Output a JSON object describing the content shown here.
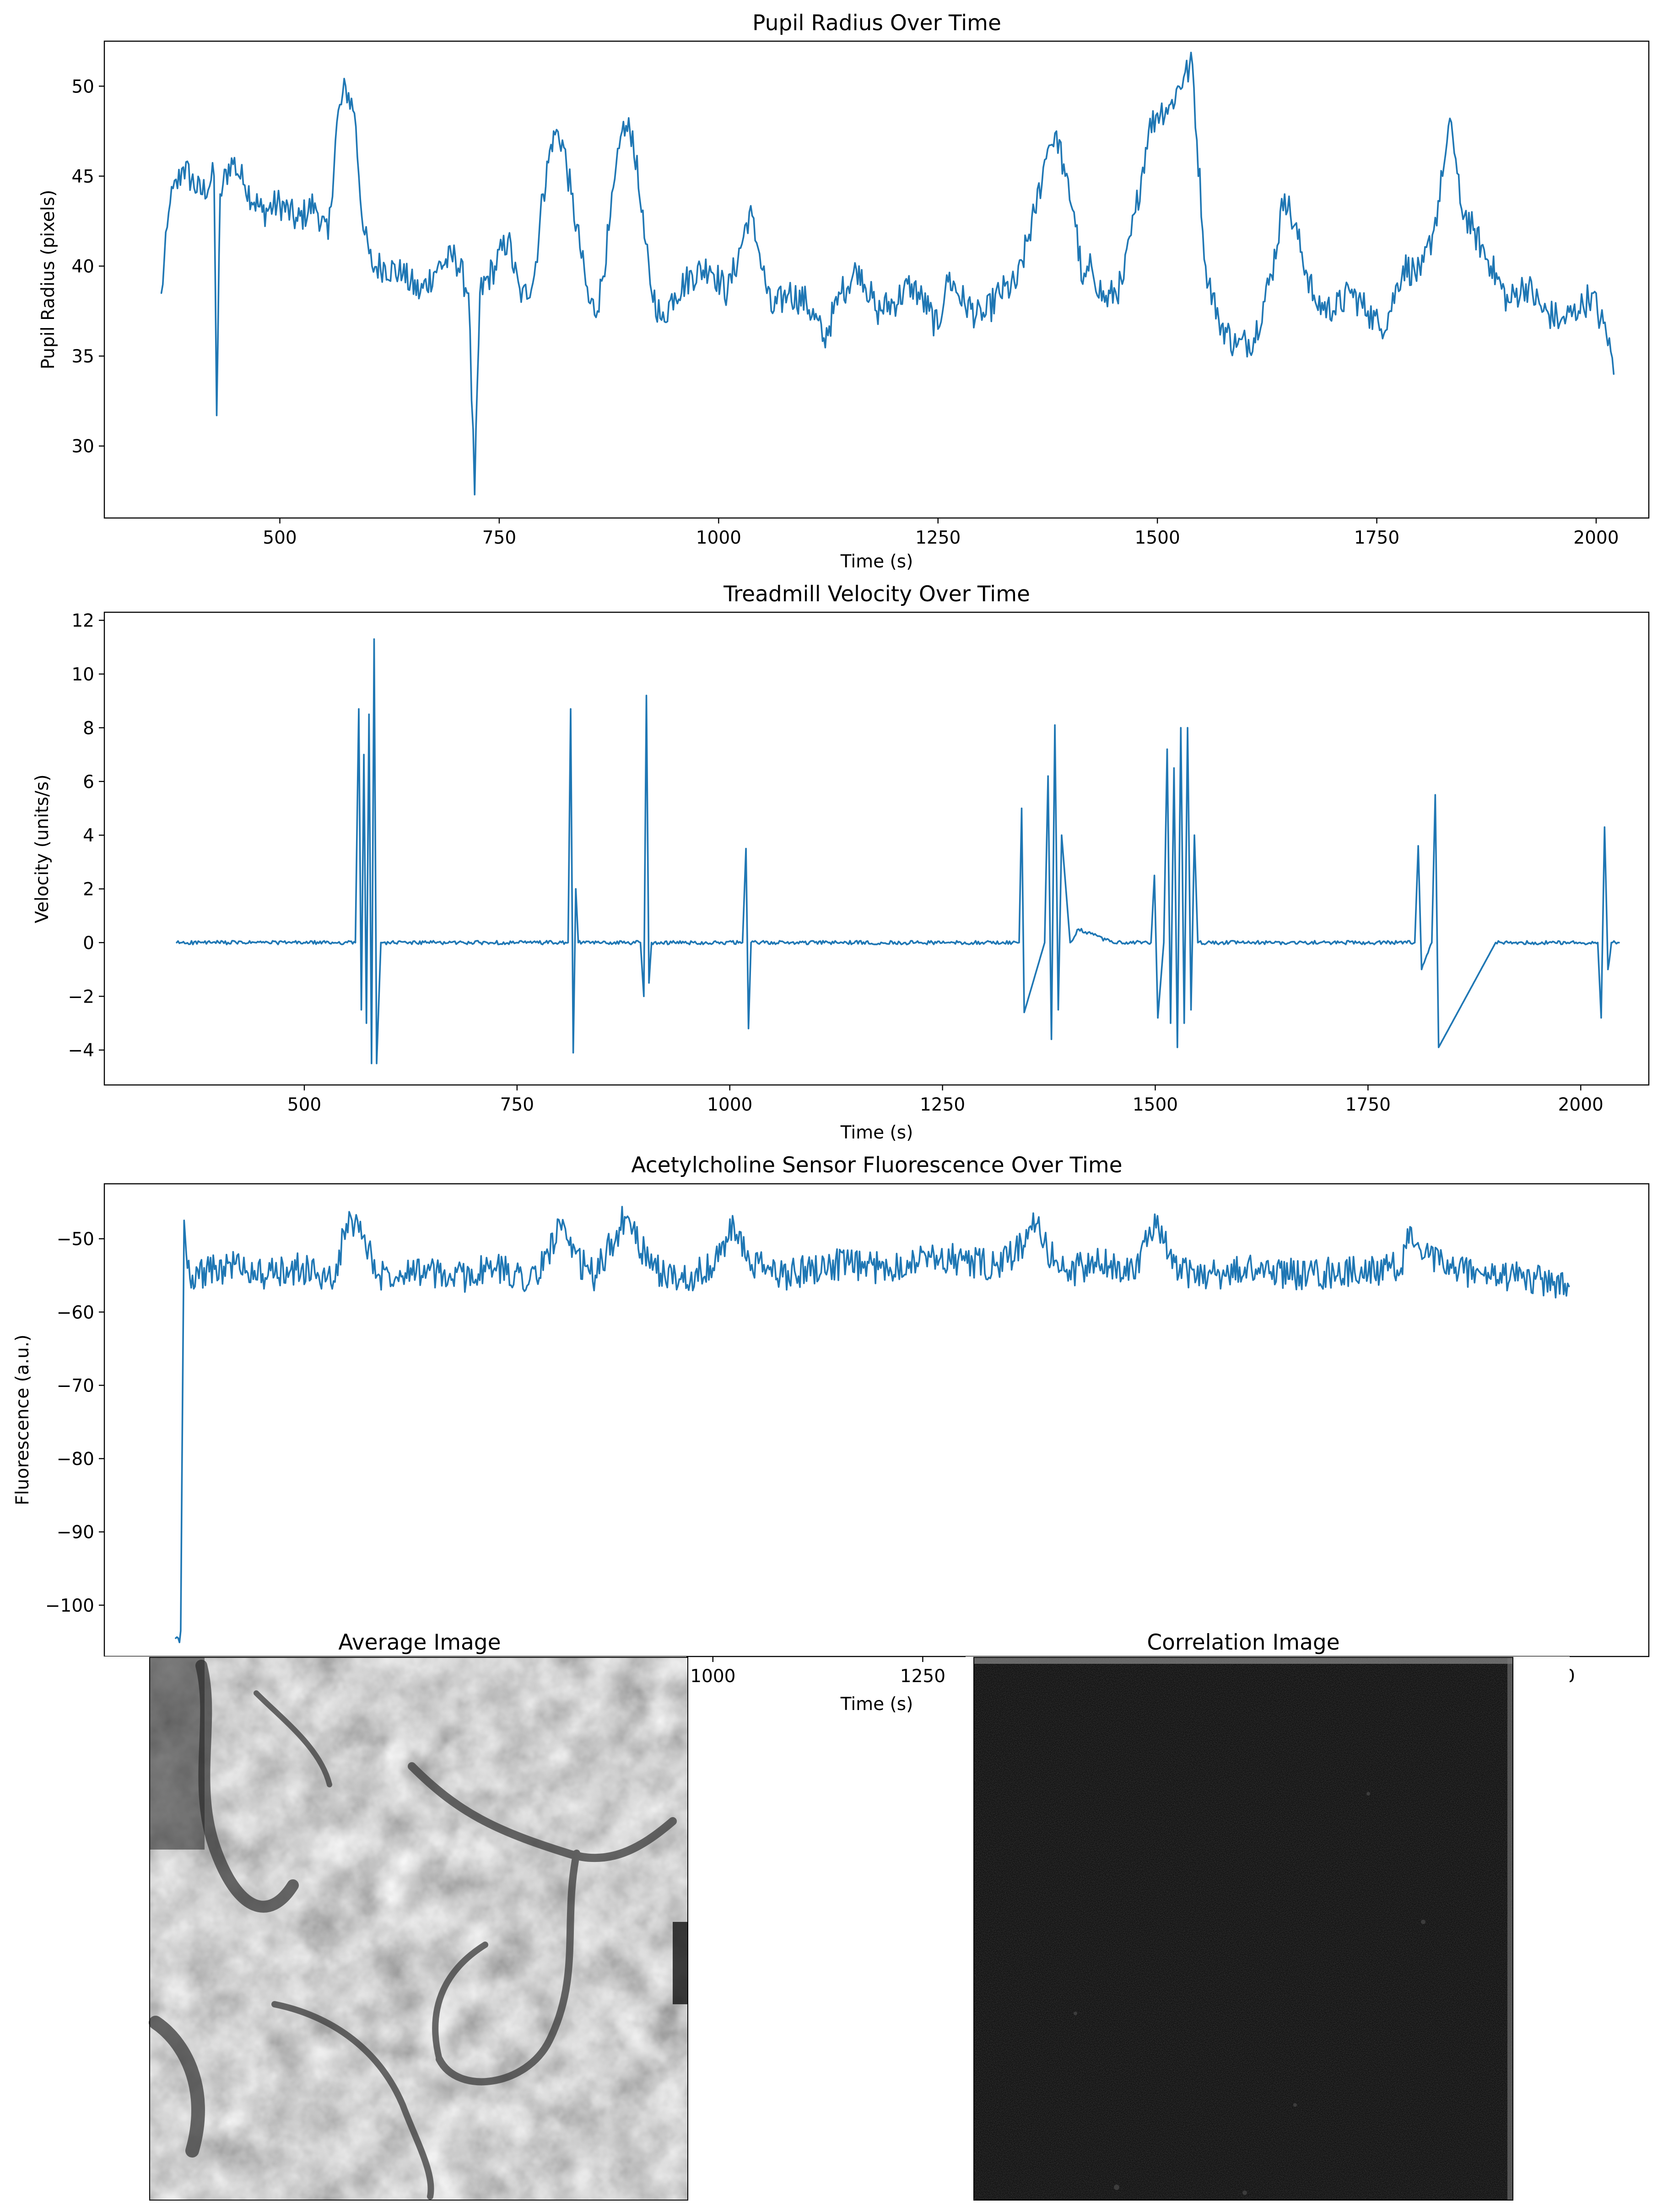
{
  "chart_data": [
    {
      "type": "line",
      "title": "Pupil Radius Over Time",
      "xlabel": "Time (s)",
      "ylabel": "Pupil Radius (pixels)",
      "xlim": [
        300,
        2060
      ],
      "ylim": [
        26,
        52.5
      ],
      "xticks": [
        500,
        750,
        1000,
        1250,
        1500,
        1750,
        2000
      ],
      "yticks": [
        30,
        35,
        40,
        45,
        50
      ],
      "series": [
        {
          "color": "#1f77b4",
          "x": [
            365,
            375,
            390,
            410,
            425,
            428,
            432,
            445,
            460,
            480,
            500,
            520,
            540,
            555,
            565,
            575,
            585,
            595,
            605,
            620,
            640,
            660,
            680,
            700,
            715,
            722,
            728,
            745,
            760,
            775,
            790,
            800,
            812,
            822,
            832,
            842,
            852,
            862,
            875,
            890,
            902,
            912,
            922,
            935,
            950,
            970,
            990,
            1010,
            1025,
            1035,
            1045,
            1060,
            1080,
            1100,
            1120,
            1140,
            1160,
            1180,
            1200,
            1220,
            1240,
            1250,
            1260,
            1280,
            1300,
            1320,
            1340,
            1360,
            1375,
            1385,
            1395,
            1405,
            1415,
            1425,
            1440,
            1460,
            1475,
            1490,
            1500,
            1515,
            1530,
            1540,
            1545,
            1555,
            1570,
            1590,
            1610,
            1630,
            1645,
            1660,
            1680,
            1700,
            1720,
            1740,
            1755,
            1765,
            1780,
            1800,
            1815,
            1825,
            1835,
            1845,
            1860,
            1880,
            1900,
            1920,
            1940,
            1960,
            1980,
            1995,
            2005,
            2015,
            2020
          ],
          "y": [
            38.5,
            43.5,
            45.5,
            44,
            45,
            31.7,
            44,
            46,
            44.5,
            43,
            43.5,
            42.5,
            43.5,
            41.5,
            48,
            50,
            48.5,
            42,
            40,
            40,
            39.5,
            38.5,
            40,
            40.5,
            38.5,
            27.3,
            38.5,
            40,
            41.5,
            38,
            39.5,
            44,
            47.5,
            47,
            44,
            41,
            38,
            37.5,
            42,
            47.5,
            47.5,
            43,
            39,
            37,
            38.5,
            39.5,
            40,
            38.5,
            41,
            43,
            41,
            37.5,
            38.5,
            38,
            36,
            38.5,
            40,
            37.5,
            38,
            39,
            37.5,
            36.5,
            39.5,
            38,
            37,
            38.5,
            39,
            43,
            46.5,
            47.5,
            45,
            43,
            39,
            40,
            38,
            39,
            43,
            47.5,
            48.5,
            49,
            50.5,
            51.2,
            47,
            40,
            37,
            35.5,
            36,
            39.5,
            44,
            41.5,
            38,
            37.5,
            38.5,
            37.5,
            36.5,
            37.5,
            40,
            39.5,
            42,
            45,
            48,
            43.5,
            42,
            40,
            38,
            39,
            37.5,
            37,
            37.5,
            38.5,
            37,
            36,
            34
          ]
        }
      ]
    },
    {
      "type": "line",
      "title": "Treadmill Velocity Over Time",
      "xlabel": "Time (s)",
      "ylabel": "Velocity (units/s)",
      "xlim": [
        265,
        2080
      ],
      "ylim": [
        -5.3,
        12.3
      ],
      "xticks": [
        500,
        750,
        1000,
        1250,
        1500,
        1750,
        2000
      ],
      "yticks": [
        -4,
        -2,
        0,
        2,
        4,
        6,
        8,
        10,
        12
      ],
      "series": [
        {
          "color": "#1f77b4",
          "x": [
            350,
            450,
            560,
            564,
            567,
            570,
            573,
            576,
            579,
            582,
            585,
            590,
            650,
            750,
            810,
            813,
            816,
            819,
            822,
            850,
            895,
            899,
            902,
            905,
            908,
            1015,
            1019,
            1022,
            1025,
            1100,
            1200,
            1300,
            1340,
            1343,
            1346,
            1370,
            1374,
            1378,
            1382,
            1386,
            1390,
            1400,
            1410,
            1450,
            1495,
            1499,
            1503,
            1510,
            1514,
            1518,
            1522,
            1526,
            1530,
            1534,
            1538,
            1542,
            1546,
            1550,
            1600,
            1700,
            1805,
            1809,
            1813,
            1825,
            1829,
            1833,
            1900,
            2020,
            2024,
            2028,
            2032,
            2036,
            2045
          ],
          "y": [
            0,
            0,
            0,
            8.7,
            -2.5,
            7,
            -3,
            8.5,
            -4.5,
            11.3,
            -4.5,
            0,
            0,
            0,
            0,
            8.7,
            -4.1,
            2,
            0,
            0,
            0,
            -2,
            9.2,
            -1.5,
            0,
            0,
            3.5,
            -3.2,
            0,
            0,
            0,
            0,
            0,
            5,
            -2.6,
            0,
            6.2,
            -3.6,
            8.1,
            -2.5,
            4,
            0,
            0.5,
            0,
            0,
            2.5,
            -2.8,
            0,
            7.2,
            -3,
            6.5,
            -3.9,
            8,
            -3,
            8,
            -2.5,
            4,
            0,
            0,
            0,
            0,
            3.6,
            -1,
            0,
            5.5,
            -3.9,
            0,
            0,
            -2.8,
            4.3,
            -1,
            0,
            0
          ]
        }
      ]
    },
    {
      "type": "line",
      "title": "Acetylcholine Sensor Fluorescence Over Time",
      "xlabel": "Time (s)",
      "ylabel": "Fluorescence (a.u.)",
      "xlim": [
        275,
        2115
      ],
      "ylim": [
        -107,
        -42.5
      ],
      "xticks": [
        1000,
        1250,
        2000
      ],
      "yticks": [
        -100,
        -90,
        -80,
        -70,
        -60,
        -50
      ],
      "series": [
        {
          "color": "#1f77b4",
          "x": [
            360,
            363,
            366,
            370,
            374,
            380,
            400,
            430,
            470,
            510,
            540,
            553,
            560,
            570,
            585,
            600,
            640,
            690,
            740,
            790,
            818,
            832,
            860,
            895,
            905,
            925,
            960,
            1000,
            1025,
            1040,
            1080,
            1140,
            1200,
            1260,
            1300,
            1340,
            1375,
            1385,
            1398,
            1420,
            1460,
            1500,
            1528,
            1538,
            1555,
            1565,
            1600,
            1650,
            1700,
            1760,
            1820,
            1832,
            1848,
            1880,
            1930,
            1980,
            2020
          ],
          "y": [
            -104.5,
            -104.5,
            -103.5,
            -47.5,
            -54,
            -55,
            -54.5,
            -53.5,
            -55,
            -54,
            -55.5,
            -55,
            -49,
            -47.5,
            -49.5,
            -55,
            -54,
            -55.5,
            -54,
            -55.5,
            -48,
            -52.5,
            -55,
            -47,
            -48.5,
            -54,
            -55.5,
            -54,
            -48,
            -53,
            -55,
            -53.5,
            -54,
            -52.5,
            -53,
            -54,
            -50,
            -48,
            -51.5,
            -54.5,
            -53.5,
            -54,
            -48.5,
            -50.5,
            -55,
            -54.5,
            -55,
            -54,
            -55,
            -54.5,
            -54,
            -48.5,
            -52.5,
            -54,
            -55,
            -55.5,
            -56.5
          ]
        }
      ]
    }
  ],
  "images": {
    "average": {
      "title": "Average Image"
    },
    "correlation": {
      "title": "Correlation Image"
    }
  }
}
